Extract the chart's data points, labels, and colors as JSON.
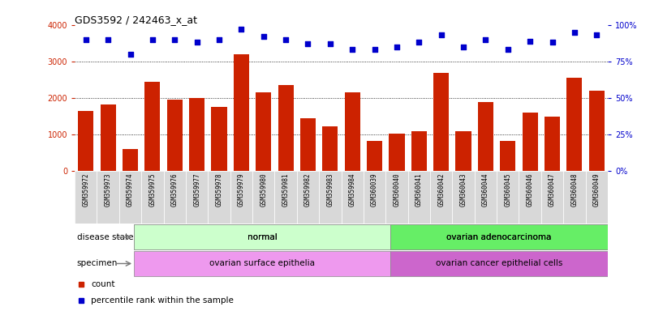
{
  "title": "GDS3592 / 242463_x_at",
  "samples": [
    "GSM359972",
    "GSM359973",
    "GSM359974",
    "GSM359975",
    "GSM359976",
    "GSM359977",
    "GSM359978",
    "GSM359979",
    "GSM359980",
    "GSM359981",
    "GSM359982",
    "GSM359983",
    "GSM359984",
    "GSM360039",
    "GSM360040",
    "GSM360041",
    "GSM360042",
    "GSM360043",
    "GSM360044",
    "GSM360045",
    "GSM360046",
    "GSM360047",
    "GSM360048",
    "GSM360049"
  ],
  "counts": [
    1650,
    1820,
    600,
    2450,
    1950,
    2000,
    1750,
    3200,
    2150,
    2350,
    1450,
    1220,
    2150,
    820,
    1020,
    1100,
    2680,
    1100,
    1880,
    820,
    1600,
    1500,
    2550,
    2200
  ],
  "percentile_ranks": [
    90,
    90,
    80,
    90,
    90,
    88,
    90,
    97,
    92,
    90,
    87,
    87,
    83,
    83,
    85,
    88,
    93,
    85,
    90,
    83,
    89,
    88,
    95,
    93
  ],
  "bar_color": "#cc2200",
  "dot_color": "#0000cc",
  "left_yaxis_color": "#cc2200",
  "right_yaxis_color": "#0000cc",
  "left_yticks": [
    0,
    1000,
    2000,
    3000,
    4000
  ],
  "right_yticks": [
    0,
    25,
    50,
    75,
    100
  ],
  "ymax": 4000,
  "grid_lines": [
    1000,
    2000,
    3000
  ],
  "disease_state_groups": [
    {
      "label": "normal",
      "start": 0,
      "end": 13,
      "color": "#ccffcc"
    },
    {
      "label": "ovarian adenocarcinoma",
      "start": 13,
      "end": 24,
      "color": "#66ee66"
    }
  ],
  "specimen_groups": [
    {
      "label": "ovarian surface epithelia",
      "start": 0,
      "end": 13,
      "color": "#ee99ee"
    },
    {
      "label": "ovarian cancer epithelial cells",
      "start": 13,
      "end": 24,
      "color": "#cc66cc"
    }
  ],
  "left_label": "disease state",
  "specimen_label": "specimen",
  "legend_count_label": "count",
  "legend_pct_label": "percentile rank within the sample",
  "xticklabel_bg": "#d8d8d8",
  "main_bg": "white"
}
